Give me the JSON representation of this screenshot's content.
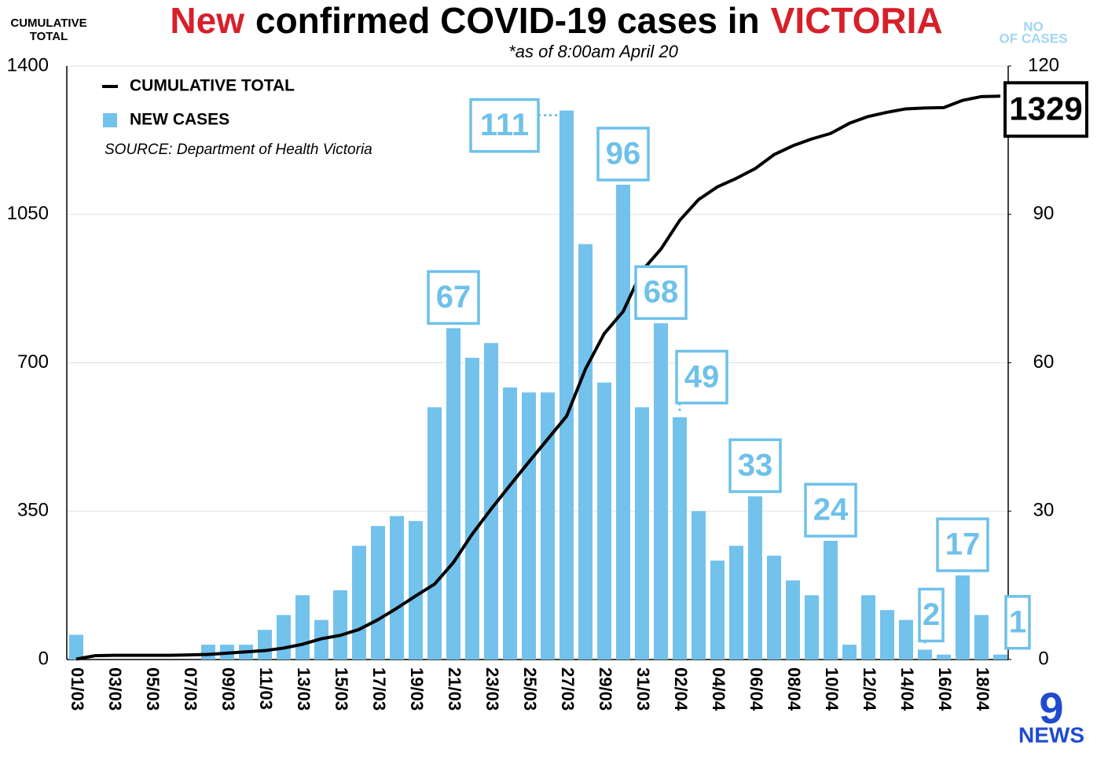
{
  "chart_data": {
    "type": "bar-line",
    "title": [
      {
        "text": "New",
        "color": "#d7202a"
      },
      {
        "text": "confirmed COVID-19 cases in",
        "color": "#000000"
      },
      {
        "text": "VICTORIA",
        "color": "#d7202a"
      }
    ],
    "subtitle": "*as of 8:00am April 20",
    "y_label": [
      "CUMULATIVE",
      "TOTAL"
    ],
    "y2_label": [
      "NO",
      "OF CASES"
    ],
    "source": "SOURCE: Department of Health Victoria",
    "logo": {
      "mark": "9",
      "text": "NEWS"
    },
    "categories": [
      "01/03",
      null,
      "03/03",
      null,
      "05/03",
      null,
      "07/03",
      null,
      "09/03",
      null,
      "11/03",
      null,
      "13/03",
      null,
      "15/03",
      null,
      "17/03",
      null,
      "19/03",
      null,
      "21/03",
      null,
      "23/03",
      null,
      "25/03",
      null,
      "27/03",
      null,
      "29/03",
      null,
      "31/03",
      null,
      "02/04",
      null,
      "04/04",
      null,
      "06/04",
      null,
      "08/04",
      null,
      "10/04",
      null,
      "12/04",
      null,
      "14/04",
      null,
      "16/04",
      null,
      "18/04",
      null
    ],
    "series": [
      {
        "name": "CUMULATIVE TOTAL",
        "color": "#000000",
        "axis": "y",
        "kind": "line",
        "values": [
          1,
          9,
          10,
          10,
          10,
          10,
          11,
          12,
          15,
          18,
          21,
          27,
          36,
          49,
          57,
          71,
          94,
          121,
          150,
          178,
          229,
          296,
          355,
          411,
          466,
          520,
          574,
          685,
          769,
          821,
          917,
          968,
          1036,
          1085,
          1115,
          1135,
          1158,
          1191,
          1212,
          1228,
          1241,
          1265,
          1281,
          1291,
          1299,
          1301,
          1302,
          1319,
          1328,
          1329
        ],
        "value_labels": [
          null,
          null,
          null,
          null,
          null,
          null,
          null,
          null,
          null,
          null,
          null,
          null,
          null,
          null,
          null,
          null,
          null,
          null,
          null,
          null,
          null,
          null,
          null,
          null,
          null,
          null,
          null,
          null,
          null,
          null,
          null,
          null,
          null,
          null,
          null,
          null,
          null,
          null,
          null,
          null,
          null,
          null,
          null,
          null,
          null,
          null,
          null,
          null,
          null,
          "1329"
        ]
      },
      {
        "name": "NEW CASES",
        "color": "#72c2ec",
        "axis": "y2",
        "kind": "bar",
        "values": [
          5,
          0,
          0,
          0,
          0,
          0,
          0,
          3,
          3,
          3,
          6,
          9,
          13,
          8,
          14,
          23,
          27,
          29,
          28,
          51,
          67,
          61,
          64,
          55,
          54,
          54,
          111,
          84,
          56,
          96,
          51,
          68,
          49,
          30,
          20,
          23,
          33,
          21,
          16,
          13,
          24,
          3,
          13,
          10,
          8,
          2,
          1,
          17,
          9,
          1
        ],
        "value_labels": [
          null,
          null,
          null,
          null,
          null,
          null,
          null,
          null,
          null,
          null,
          null,
          null,
          null,
          null,
          null,
          null,
          null,
          null,
          null,
          null,
          "67",
          null,
          null,
          null,
          null,
          null,
          "111",
          null,
          null,
          "96",
          null,
          "68",
          "49",
          null,
          null,
          null,
          "33",
          null,
          null,
          null,
          "24",
          null,
          null,
          null,
          null,
          "2",
          null,
          "17",
          null,
          "1"
        ]
      }
    ],
    "ylim": [
      0,
      1400
    ],
    "yticks": [
      0,
      350,
      700,
      1050,
      1400
    ],
    "y2lim": [
      0,
      120
    ],
    "y2ticks": [
      0,
      30,
      60,
      90,
      120
    ],
    "grid": true
  }
}
